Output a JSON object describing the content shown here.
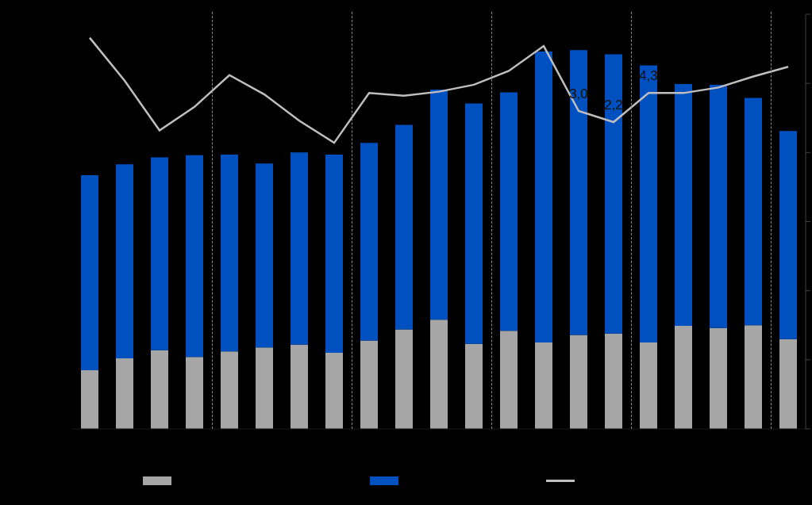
{
  "chart_data": {
    "type": "bar",
    "stacked": true,
    "tick_labels": false,
    "legend": "bottom",
    "categories": [
      null,
      null,
      null,
      null,
      null,
      null,
      null,
      null,
      null,
      null,
      null,
      null,
      null,
      null,
      null,
      null,
      null,
      null,
      null,
      null,
      null
    ],
    "ylim": [
      0,
      60
    ],
    "yticks": [
      0,
      10,
      20,
      30,
      40,
      50,
      60
    ],
    "y2lim": [
      -20,
      10
    ],
    "y2ticks": [
      -20,
      -15,
      -10,
      -5,
      0,
      5,
      10
    ],
    "series": [
      {
        "type": "bar",
        "color": "#a6a6a6",
        "values": [
          8.5,
          10.2,
          11.4,
          10.4,
          11.2,
          11.8,
          12.2,
          11.0,
          12.8,
          14.4,
          15.8,
          12.3,
          14.2,
          12.5,
          13.6,
          13.8,
          12.5,
          14.9,
          14.6,
          15.0,
          13.0
        ]
      },
      {
        "type": "bar",
        "color": "#0050c0",
        "values": [
          28.2,
          28.1,
          27.9,
          29.2,
          28.5,
          26.6,
          27.8,
          28.7,
          28.6,
          29.6,
          33.3,
          34.8,
          34.5,
          42.1,
          41.2,
          40.4,
          40.1,
          35.0,
          35.2,
          32.9,
          30.1
        ]
      },
      {
        "type": "line",
        "axis": "y2",
        "color": "#bfbfbf",
        "marker": "none",
        "line_style": "solid",
        "data_labels": true,
        "values": [
          8.3,
          5.2,
          1.6,
          3.3,
          5.6,
          4.2,
          2.3,
          0.7,
          4.3,
          4.1,
          4.4,
          4.9,
          5.9,
          7.7,
          3.0,
          2.2,
          4.3,
          4.3,
          4.7,
          5.5,
          6.2
        ],
        "value_labels": [
          null,
          null,
          null,
          null,
          null,
          null,
          null,
          null,
          null,
          null,
          null,
          null,
          null,
          null,
          "3,0",
          "2,2",
          "4,3",
          null,
          null,
          null,
          null
        ]
      }
    ]
  }
}
